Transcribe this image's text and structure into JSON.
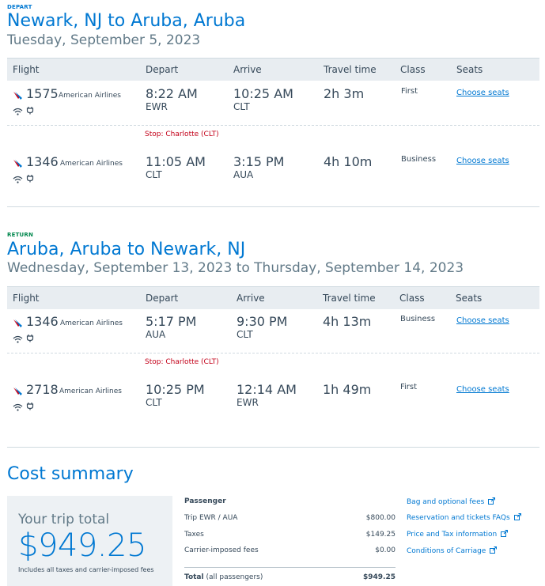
{
  "depart": {
    "label": "DEPART",
    "title": "Newark, NJ to Aruba, Aruba",
    "date": "Tuesday, September 5, 2023",
    "headers": [
      "Flight",
      "Depart",
      "Arrive",
      "Travel time",
      "Class",
      "Seats"
    ],
    "flights": [
      {
        "number": "1575",
        "airline": "American Airlines",
        "depart_time": "8:22 AM",
        "depart_airport": "EWR",
        "arrive_time": "10:25 AM",
        "arrive_airport": "CLT",
        "duration": "2h 3m",
        "class": "First",
        "seats": "Choose seats"
      },
      {
        "number": "1346",
        "airline": "American Airlines",
        "depart_time": "11:05 AM",
        "depart_airport": "CLT",
        "arrive_time": "3:15 PM",
        "arrive_airport": "AUA",
        "duration": "4h 10m",
        "class": "Business",
        "seats": "Choose seats"
      }
    ],
    "stop": "Stop: Charlotte (CLT)"
  },
  "return": {
    "label": "RETURN",
    "title": "Aruba, Aruba to Newark, NJ",
    "date": "Wednesday, September 13, 2023 to Thursday, September 14, 2023",
    "headers": [
      "Flight",
      "Depart",
      "Arrive",
      "Travel time",
      "Class",
      "Seats"
    ],
    "flights": [
      {
        "number": "1346",
        "airline": "American Airlines",
        "depart_time": "5:17 PM",
        "depart_airport": "AUA",
        "arrive_time": "9:30 PM",
        "arrive_airport": "CLT",
        "duration": "4h 13m",
        "class": "Business",
        "seats": "Choose seats"
      },
      {
        "number": "2718",
        "airline": "American Airlines",
        "depart_time": "10:25 PM",
        "depart_airport": "CLT",
        "arrive_time": "12:14 AM",
        "arrive_airport": "EWR",
        "duration": "1h 49m",
        "class": "First",
        "seats": "Choose seats"
      }
    ],
    "stop": "Stop: Charlotte (CLT)"
  },
  "cost": {
    "title": "Cost summary",
    "trip_total_label": "Your trip total",
    "trip_total": "$949.25",
    "includes": "Includes all taxes and carrier-imposed fees",
    "passenger_label": "Passenger",
    "rows": [
      {
        "label": "Trip EWR / AUA",
        "value": "$800.00"
      },
      {
        "label": "Taxes",
        "value": "$149.25"
      },
      {
        "label": "Carrier-imposed fees",
        "value": "$0.00"
      }
    ],
    "total_label": "Total",
    "total_sub": "(all passengers)",
    "total_value": "$949.25",
    "links": [
      "Bag and optional fees",
      "Reservation and tickets FAQs",
      "Price and Tax information",
      "Conditions of Carriage"
    ]
  },
  "colors": {
    "accent": "#0078d2",
    "stop": "#c30019",
    "return": "#00874d",
    "header_bg": "#e8edf1"
  }
}
